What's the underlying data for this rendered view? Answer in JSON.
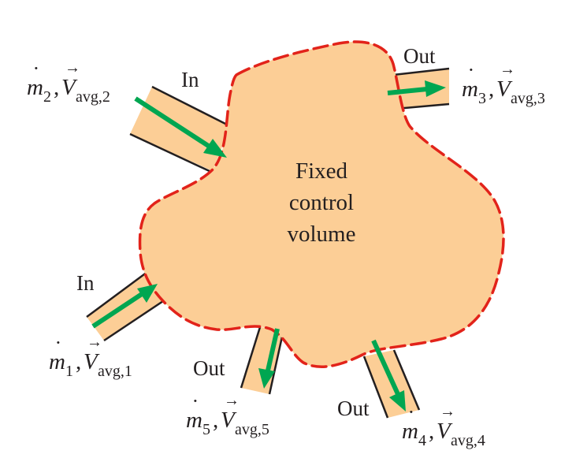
{
  "control_volume": {
    "title_line1": "Fixed",
    "title_line2": "control",
    "title_line3": "volume",
    "fill_color": "#fcce96",
    "boundary_color": "#e2231a",
    "arrow_color": "#00a651"
  },
  "streams": [
    {
      "id": "1",
      "direction": "In",
      "mass": "m",
      "dot": "˙",
      "sep": ",",
      "vel": "V",
      "vec": "→",
      "sub_mass": "1",
      "sub_vel": "avg,1"
    },
    {
      "id": "2",
      "direction": "In",
      "mass": "m",
      "dot": "˙",
      "sep": ",",
      "vel": "V",
      "vec": "→",
      "sub_mass": "2",
      "sub_vel": "avg,2"
    },
    {
      "id": "3",
      "direction": "Out",
      "mass": "m",
      "dot": "˙",
      "sep": ",",
      "vel": "V",
      "vec": "→",
      "sub_mass": "3",
      "sub_vel": "avg,3"
    },
    {
      "id": "4",
      "direction": "Out",
      "mass": "m",
      "dot": "˙",
      "sep": ",",
      "vel": "V",
      "vec": "→",
      "sub_mass": "4",
      "sub_vel": "avg,4"
    },
    {
      "id": "5",
      "direction": "Out",
      "mass": "m",
      "dot": "˙",
      "sep": ",",
      "vel": "V",
      "vec": "→",
      "sub_mass": "5",
      "sub_vel": "avg,5"
    }
  ]
}
